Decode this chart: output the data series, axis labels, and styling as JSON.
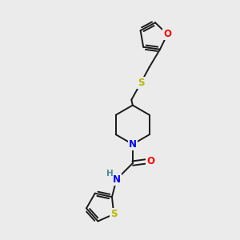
{
  "background_color": "#ebebeb",
  "bond_color": "#1a1a1a",
  "atom_colors": {
    "O": "#ff0000",
    "N": "#0000ff",
    "S": "#b8b800",
    "H": "#4a9090",
    "C": "#1a1a1a"
  },
  "figsize": [
    3.0,
    3.0
  ],
  "dpi": 100,
  "xlim": [
    0,
    10
  ],
  "ylim": [
    0,
    10
  ]
}
